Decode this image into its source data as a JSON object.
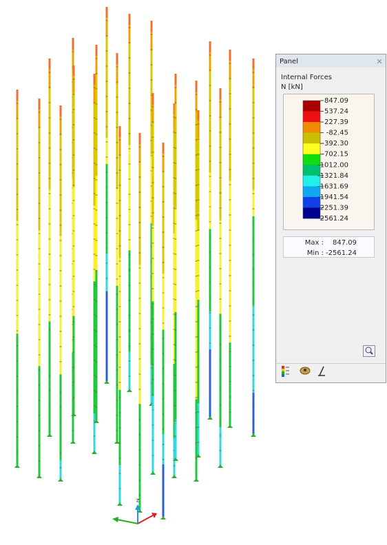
{
  "panel": {
    "title": "Panel",
    "result_type": "Internal Forces",
    "unit": "N [kN]",
    "legend": {
      "labels": [
        "847.09",
        "537.24",
        "227.39",
        "-82.45",
        "-392.30",
        "-702.15",
        "-1012.00",
        "-1321.84",
        "-1631.69",
        "-1941.54",
        "-2251.39",
        "-2561.24"
      ],
      "colors": [
        "#a80000",
        "#ee1010",
        "#f08a00",
        "#c8c000",
        "#ffff20",
        "#10dc10",
        "#00c070",
        "#20f0e8",
        "#10a8f0",
        "#1040e8",
        "#000090"
      ]
    },
    "summary": {
      "max_label": "Max :",
      "max": "847.09",
      "min_label": "Min :",
      "min": "-2561.24"
    }
  }
}
